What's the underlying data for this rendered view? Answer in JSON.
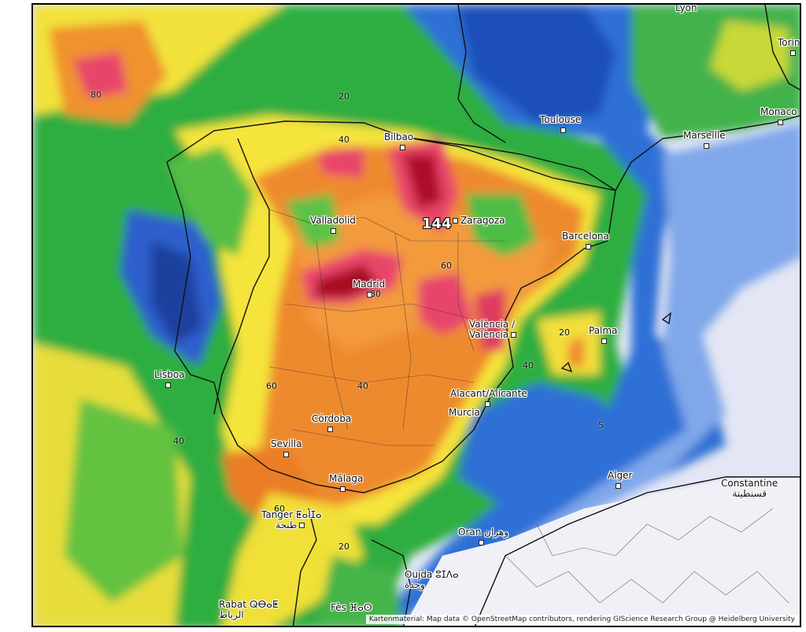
{
  "attribution": "Kartenmaterial: Map data © OpenStreetMap contributors, rendering GIScience Research Group @ Heidelberg University",
  "max_value": "144",
  "cities": [
    {
      "key": "bilbao",
      "label": "Bilbao"
    },
    {
      "key": "valladolid",
      "label": "Valladolid"
    },
    {
      "key": "zaragoza",
      "label": "Zaragoza"
    },
    {
      "key": "barcelona",
      "label": "Barcelona"
    },
    {
      "key": "madrid",
      "label": "Madrid"
    },
    {
      "key": "valencia",
      "label": "València /\nValència"
    },
    {
      "key": "palma",
      "label": "Palma"
    },
    {
      "key": "lisboa",
      "label": "Lisboa"
    },
    {
      "key": "alicante",
      "label": "Alacant/Alicante"
    },
    {
      "key": "murcia",
      "label": "Murcia"
    },
    {
      "key": "cordoba",
      "label": "Córdoba"
    },
    {
      "key": "sevilla",
      "label": "Sevilla"
    },
    {
      "key": "malaga",
      "label": "Málaga"
    },
    {
      "key": "tanger",
      "label": "Tanger ⵟⴰⵏⵊⴰ\nطنجة"
    },
    {
      "key": "oran",
      "label": "Oran وهران"
    },
    {
      "key": "oujda",
      "label": "Oujda ⵓⵊⴷⴰ\nوجدة"
    },
    {
      "key": "rabat",
      "label": "Rabat ⵕⴱⴰⵟ\nالرباط"
    },
    {
      "key": "fes",
      "label": "Fès ⴼⴰⵙ"
    },
    {
      "key": "alger",
      "label": "Alger"
    },
    {
      "key": "constantine",
      "label": "Constantine\nقسنطينة"
    },
    {
      "key": "toulouse",
      "label": "Toulouse"
    },
    {
      "key": "marseille",
      "label": "Marseille"
    },
    {
      "key": "monaco",
      "label": "Monaco"
    },
    {
      "key": "lyon",
      "label": "Lyon"
    },
    {
      "key": "torino",
      "label": "Torin"
    }
  ],
  "contour_labels": [
    "80",
    "20",
    "40",
    "60",
    "80",
    "20",
    "40",
    "60",
    "40",
    "40",
    "20",
    "5",
    "60",
    "20"
  ]
}
